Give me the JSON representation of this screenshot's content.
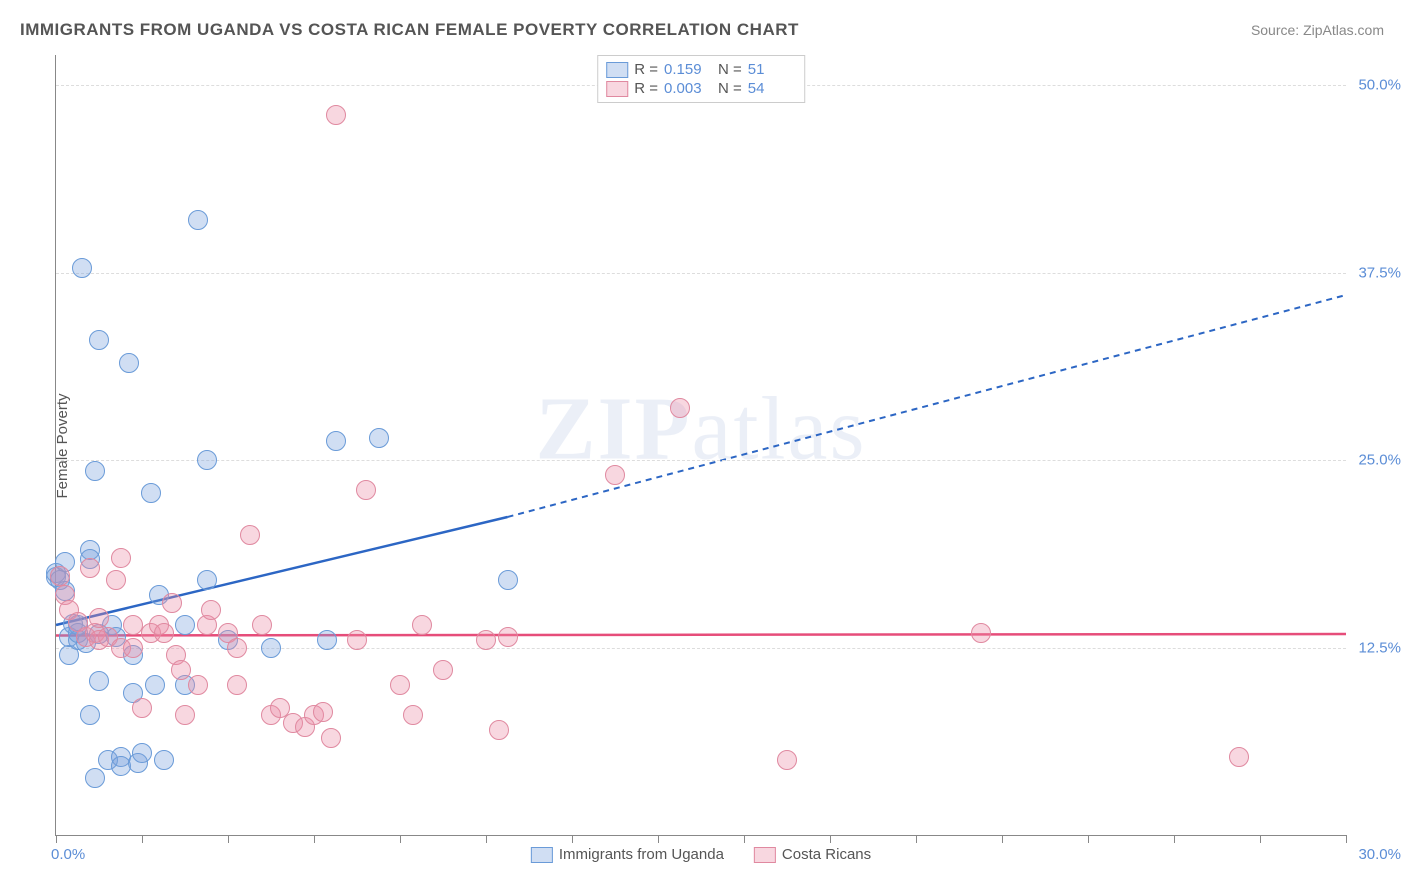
{
  "title": "IMMIGRANTS FROM UGANDA VS COSTA RICAN FEMALE POVERTY CORRELATION CHART",
  "source": "Source: ZipAtlas.com",
  "ylabel": "Female Poverty",
  "watermark_zip": "ZIP",
  "watermark_atlas": "atlas",
  "chart": {
    "type": "scatter",
    "xlim": [
      0,
      30
    ],
    "ylim": [
      0,
      52
    ],
    "x_tick_step": 2,
    "x_label_min": "0.0%",
    "x_label_max": "30.0%",
    "y_gridlines": [
      12.5,
      25.0,
      37.5,
      50.0
    ],
    "y_labels": [
      "12.5%",
      "25.0%",
      "37.5%",
      "50.0%"
    ],
    "background_color": "#ffffff",
    "grid_color": "#dddddd",
    "series": [
      {
        "name": "Immigrants from Uganda",
        "fill": "rgba(120,160,220,0.35)",
        "stroke": "#6a9bd8",
        "line_color": "#2c66c4",
        "trend": {
          "x1": 0,
          "y1": 14.0,
          "x2_solid": 10.5,
          "y2_solid": 21.2,
          "x2": 30,
          "y2": 36.0
        },
        "points": [
          [
            0.0,
            17.2
          ],
          [
            0.0,
            17.5
          ],
          [
            0.1,
            17.0
          ],
          [
            0.2,
            16.3
          ],
          [
            0.2,
            18.2
          ],
          [
            0.3,
            12.0
          ],
          [
            0.3,
            13.2
          ],
          [
            0.4,
            14.1
          ],
          [
            0.5,
            14.0
          ],
          [
            0.5,
            13.0
          ],
          [
            0.5,
            13.5
          ],
          [
            0.6,
            37.8
          ],
          [
            0.7,
            12.8
          ],
          [
            0.8,
            8.0
          ],
          [
            0.8,
            19.0
          ],
          [
            0.8,
            18.4
          ],
          [
            0.9,
            3.8
          ],
          [
            0.9,
            24.3
          ],
          [
            1.0,
            33.0
          ],
          [
            1.0,
            13.4
          ],
          [
            1.0,
            10.3
          ],
          [
            1.2,
            5.0
          ],
          [
            1.3,
            14.0
          ],
          [
            1.4,
            13.2
          ],
          [
            1.5,
            5.2
          ],
          [
            1.5,
            4.6
          ],
          [
            1.7,
            31.5
          ],
          [
            1.8,
            9.5
          ],
          [
            1.8,
            12.0
          ],
          [
            1.9,
            4.8
          ],
          [
            2.0,
            5.5
          ],
          [
            2.2,
            22.8
          ],
          [
            2.3,
            10.0
          ],
          [
            2.4,
            16.0
          ],
          [
            2.5,
            5.0
          ],
          [
            3.0,
            10.0
          ],
          [
            3.0,
            14.0
          ],
          [
            3.5,
            17.0
          ],
          [
            3.3,
            41.0
          ],
          [
            3.5,
            25.0
          ],
          [
            4.0,
            13.0
          ],
          [
            5.0,
            12.5
          ],
          [
            6.3,
            13.0
          ],
          [
            6.5,
            26.3
          ],
          [
            7.5,
            26.5
          ],
          [
            10.5,
            17.0
          ]
        ]
      },
      {
        "name": "Costa Ricans",
        "fill": "rgba(235,140,165,0.35)",
        "stroke": "#e089a0",
        "line_color": "#e64d7a",
        "trend": {
          "x1": 0,
          "y1": 13.3,
          "x2_solid": 30,
          "y2_solid": 13.4,
          "x2": 30,
          "y2": 13.4
        },
        "points": [
          [
            0.1,
            17.3
          ],
          [
            0.2,
            16.0
          ],
          [
            0.3,
            15.0
          ],
          [
            0.5,
            14.2
          ],
          [
            0.7,
            13.2
          ],
          [
            0.8,
            17.8
          ],
          [
            0.9,
            13.5
          ],
          [
            1.0,
            14.5
          ],
          [
            1.0,
            13.0
          ],
          [
            1.2,
            13.2
          ],
          [
            1.4,
            17.0
          ],
          [
            1.5,
            18.5
          ],
          [
            1.5,
            12.5
          ],
          [
            1.8,
            14.0
          ],
          [
            1.8,
            12.5
          ],
          [
            2.0,
            8.5
          ],
          [
            2.2,
            13.5
          ],
          [
            2.4,
            14.0
          ],
          [
            2.5,
            13.5
          ],
          [
            2.7,
            15.5
          ],
          [
            2.8,
            12.0
          ],
          [
            2.9,
            11.0
          ],
          [
            3.0,
            8.0
          ],
          [
            3.3,
            10.0
          ],
          [
            3.5,
            14.0
          ],
          [
            3.6,
            15.0
          ],
          [
            4.0,
            13.5
          ],
          [
            4.2,
            12.5
          ],
          [
            4.2,
            10.0
          ],
          [
            4.5,
            20.0
          ],
          [
            4.8,
            14.0
          ],
          [
            5.0,
            8.0
          ],
          [
            5.2,
            8.5
          ],
          [
            5.5,
            7.5
          ],
          [
            5.8,
            7.2
          ],
          [
            6.0,
            8.0
          ],
          [
            6.2,
            8.2
          ],
          [
            6.4,
            6.5
          ],
          [
            6.5,
            48.0
          ],
          [
            7.0,
            13.0
          ],
          [
            7.2,
            23.0
          ],
          [
            8.0,
            10.0
          ],
          [
            8.3,
            8.0
          ],
          [
            8.5,
            14.0
          ],
          [
            9.0,
            11.0
          ],
          [
            10.0,
            13.0
          ],
          [
            10.3,
            7.0
          ],
          [
            10.5,
            13.2
          ],
          [
            13.0,
            24.0
          ],
          [
            14.5,
            28.5
          ],
          [
            17.0,
            5.0
          ],
          [
            21.5,
            13.5
          ],
          [
            27.5,
            5.2
          ]
        ]
      }
    ],
    "legend_top": [
      {
        "swatch_fill": "rgba(120,160,220,0.35)",
        "swatch_stroke": "#6a9bd8",
        "r_label": "R =",
        "r_value": "0.159",
        "n_label": "N =",
        "n_value": "51"
      },
      {
        "swatch_fill": "rgba(235,140,165,0.35)",
        "swatch_stroke": "#e089a0",
        "r_label": "R =",
        "r_value": "0.003",
        "n_label": "N =",
        "n_value": "54"
      }
    ],
    "legend_bottom": [
      {
        "swatch_fill": "rgba(120,160,220,0.35)",
        "swatch_stroke": "#6a9bd8",
        "label": "Immigrants from Uganda"
      },
      {
        "swatch_fill": "rgba(235,140,165,0.35)",
        "swatch_stroke": "#e089a0",
        "label": "Costa Ricans"
      }
    ]
  }
}
